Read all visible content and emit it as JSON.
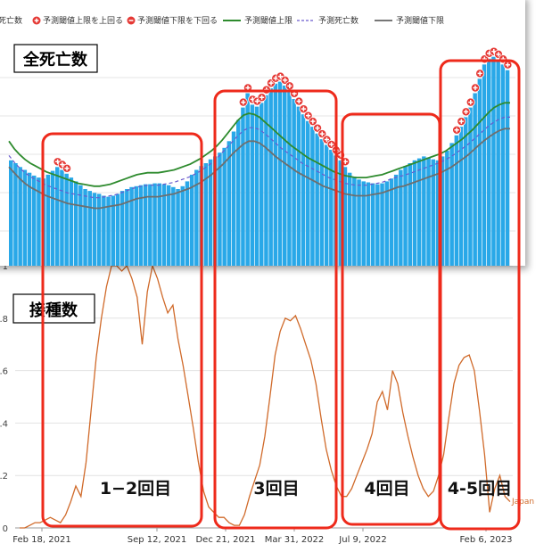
{
  "legend": {
    "items": [
      {
        "label": "死亡数",
        "kind": "bar",
        "color": "#29a8e8"
      },
      {
        "label": "予測閾値上限を上回る",
        "kind": "plus",
        "color": "#e53935"
      },
      {
        "label": "予測閾値下限を下回る",
        "kind": "minus",
        "color": "#e53935"
      },
      {
        "label": "予測閾値上限",
        "kind": "line",
        "color": "#2e8b2e"
      },
      {
        "label": "予測死亡数",
        "kind": "dash",
        "color": "#6a5acd"
      },
      {
        "label": "予測閾値下限",
        "kind": "line",
        "color": "#777777"
      }
    ]
  },
  "top_panel": {
    "title": "全死亡数"
  },
  "bottom_panel": {
    "title": "接種数",
    "country_label": "Japan"
  },
  "annotations": [
    "1−2回目",
    "3回目",
    "4回目",
    "4-5回目"
  ],
  "chart_data": [
    {
      "type": "bar",
      "title": "全死亡数",
      "series": [
        {
          "name": "死亡数",
          "values": [
            110,
            107,
            103,
            100,
            97,
            94,
            92,
            91,
            95,
            99,
            103,
            100,
            96,
            92,
            88,
            84,
            80,
            78,
            76,
            75,
            73,
            72,
            73,
            75,
            78,
            80,
            82,
            83,
            84,
            85,
            85,
            86,
            86,
            85,
            84,
            82,
            80,
            83,
            88,
            95,
            100,
            104,
            107,
            111,
            114,
            118,
            123,
            130,
            140,
            152,
            165,
            180,
            168,
            166,
            170,
            178,
            185,
            190,
            192,
            188,
            182,
            174,
            166,
            158,
            151,
            145,
            138,
            132,
            126,
            121,
            115,
            110,
            103,
            97,
            93,
            90,
            88,
            87,
            86,
            85,
            86,
            88,
            91,
            95,
            100,
            104,
            107,
            110,
            112,
            114,
            113,
            111,
            110,
            114,
            120,
            128,
            136,
            145,
            155,
            165,
            180,
            195,
            210,
            216,
            218,
            215,
            210,
            204
          ]
        },
        {
          "name": "予測閾値上限",
          "values": [
            130,
            122,
            116,
            111,
            107,
            104,
            101,
            98,
            96,
            94,
            92,
            90,
            88,
            86,
            85,
            84,
            83,
            83,
            84,
            85,
            87,
            89,
            91,
            93,
            95,
            96,
            97,
            97,
            97,
            98,
            99,
            100,
            102,
            104,
            106,
            109,
            112,
            116,
            120,
            125,
            131,
            138,
            145,
            152,
            157,
            159,
            158,
            155,
            150,
            145,
            140,
            135,
            130,
            125,
            121,
            117,
            113,
            110,
            107,
            104,
            101,
            98,
            96,
            94,
            93,
            92,
            92,
            92,
            93,
            94,
            95,
            97,
            99,
            101,
            103,
            105,
            107,
            109,
            111,
            113,
            115,
            117,
            120,
            124,
            128,
            132,
            137,
            142,
            148,
            154,
            160,
            165,
            168,
            170,
            170
          ]
        },
        {
          "name": "予測死亡数",
          "values": [
            115,
            108,
            102,
            97,
            93,
            90,
            87,
            84,
            82,
            80,
            78,
            76,
            75,
            74,
            73,
            72,
            71,
            71,
            72,
            73,
            74,
            76,
            78,
            80,
            82,
            83,
            84,
            84,
            84,
            85,
            86,
            87,
            89,
            91,
            93,
            96,
            99,
            103,
            107,
            112,
            118,
            124,
            130,
            136,
            141,
            144,
            144,
            142,
            138,
            133,
            128,
            123,
            119,
            115,
            111,
            107,
            104,
            101,
            98,
            95,
            92,
            90,
            88,
            86,
            85,
            84,
            84,
            84,
            85,
            86,
            87,
            89,
            91,
            93,
            94,
            96,
            98,
            100,
            102,
            104,
            106,
            108,
            111,
            114,
            118,
            122,
            126,
            131,
            136,
            141,
            146,
            150,
            153,
            155,
            155
          ]
        },
        {
          "name": "予測閾値下限",
          "values": [
            103,
            97,
            91,
            86,
            82,
            79,
            76,
            73,
            71,
            69,
            67,
            65,
            64,
            63,
            62,
            61,
            60,
            60,
            61,
            62,
            63,
            64,
            66,
            68,
            70,
            71,
            72,
            72,
            72,
            73,
            74,
            75,
            77,
            79,
            81,
            84,
            87,
            91,
            95,
            100,
            105,
            111,
            117,
            122,
            127,
            130,
            130,
            128,
            124,
            119,
            114,
            110,
            106,
            102,
            98,
            95,
            92,
            89,
            86,
            83,
            81,
            79,
            77,
            75,
            74,
            73,
            73,
            73,
            74,
            75,
            76,
            78,
            80,
            82,
            83,
            85,
            87,
            89,
            91,
            93,
            95,
            97,
            100,
            103,
            107,
            111,
            115,
            120,
            125,
            130,
            134,
            138,
            141,
            143,
            143
          ]
        }
      ],
      "ylim": [
        0,
        240
      ]
    },
    {
      "type": "line",
      "title": "接種数",
      "series": [
        {
          "name": "Japan",
          "values": [
            0,
            0,
            0.01,
            0.02,
            0.02,
            0.03,
            0.04,
            0.03,
            0.02,
            0.05,
            0.1,
            0.16,
            0.12,
            0.25,
            0.45,
            0.65,
            0.8,
            0.92,
            1.0,
            1.0,
            0.98,
            1.0,
            0.95,
            0.88,
            0.7,
            0.9,
            1.0,
            0.95,
            0.88,
            0.82,
            0.85,
            0.72,
            0.62,
            0.5,
            0.38,
            0.25,
            0.14,
            0.08,
            0.06,
            0.04,
            0.04,
            0.02,
            0.01,
            0.01,
            0.05,
            0.12,
            0.18,
            0.24,
            0.35,
            0.5,
            0.66,
            0.75,
            0.8,
            0.79,
            0.81,
            0.76,
            0.7,
            0.64,
            0.55,
            0.42,
            0.3,
            0.22,
            0.16,
            0.12,
            0.12,
            0.15,
            0.2,
            0.25,
            0.3,
            0.36,
            0.48,
            0.52,
            0.45,
            0.6,
            0.55,
            0.44,
            0.35,
            0.27,
            0.2,
            0.15,
            0.12,
            0.14,
            0.2,
            0.28,
            0.42,
            0.55,
            0.62,
            0.65,
            0.66,
            0.6,
            0.45,
            0.28,
            0.06,
            0.15,
            0.2,
            0.12,
            0.1
          ]
        }
      ],
      "ylim": [
        0,
        1.0
      ],
      "yticks": [
        "0",
        "0.2",
        "0.4",
        "0.6",
        "0.8",
        "1"
      ],
      "xticks": [
        "Feb 18, 2021",
        "Sep 12, 2021",
        "Dec 21, 2021",
        "Mar 31, 2022",
        "Jul 9, 2022",
        "Feb 6, 2023"
      ]
    }
  ]
}
